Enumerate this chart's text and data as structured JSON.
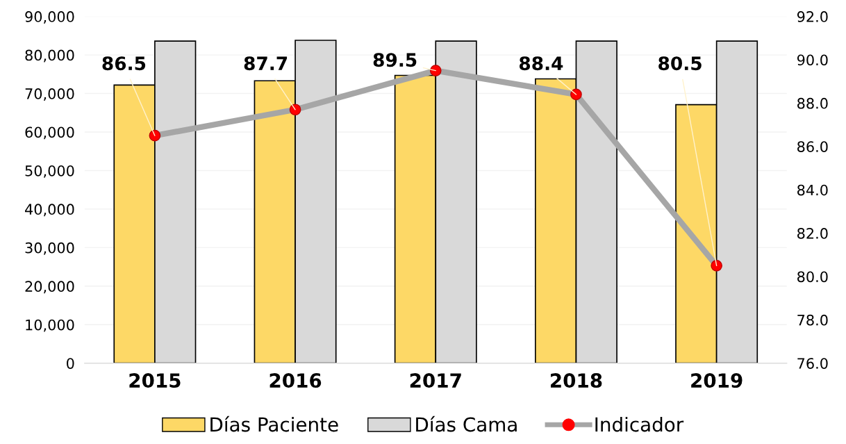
{
  "chart_data": {
    "type": "bar",
    "categories": [
      "2015",
      "2016",
      "2017",
      "2018",
      "2019"
    ],
    "series": [
      {
        "name": "Días Paciente",
        "color": "#fdd866",
        "values": [
          72200,
          73300,
          74700,
          73800,
          67100
        ]
      },
      {
        "name": "Días Cama",
        "color": "#d9d9d9",
        "values": [
          83600,
          83800,
          83600,
          83600,
          83600
        ]
      },
      {
        "name": "Indicador",
        "type": "line",
        "axis": "y2",
        "color": "#a6a6a6",
        "marker": "circle",
        "values": [
          86.5,
          87.7,
          89.5,
          88.4,
          80.5
        ],
        "value_labels": [
          "86.5",
          "87.7",
          "89.5",
          "88.4",
          "80.5"
        ]
      }
    ],
    "ylim": [
      0,
      90000
    ],
    "yticks": [
      0,
      {
        "value": 10000,
        "label": "10,000"
      },
      {
        "value": 20000,
        "label": "20,000"
      },
      {
        "value": 30000,
        "label": "30,000"
      },
      {
        "value": 40000,
        "label": "40,000"
      },
      {
        "value": 50000,
        "label": "50,000"
      },
      {
        "value": 60000,
        "label": "60,000"
      },
      {
        "value": 70000,
        "label": "70,000"
      },
      {
        "value": 80000,
        "label": "80,000"
      },
      {
        "value": 90000,
        "label": "90,000"
      }
    ],
    "y2lim": [
      76,
      92
    ],
    "y2ticks": [
      {
        "value": 76,
        "label": "76.0"
      },
      {
        "value": 78,
        "label": "78.0"
      },
      {
        "value": 80,
        "label": "80.0"
      },
      {
        "value": 82,
        "label": "82.0"
      },
      {
        "value": 84,
        "label": "84.0"
      },
      {
        "value": 86,
        "label": "86.0"
      },
      {
        "value": 88,
        "label": "88.0"
      },
      {
        "value": 90,
        "label": "90.0"
      },
      {
        "value": 92,
        "label": "92.0"
      }
    ],
    "grid": "y",
    "legend": "bottom"
  }
}
